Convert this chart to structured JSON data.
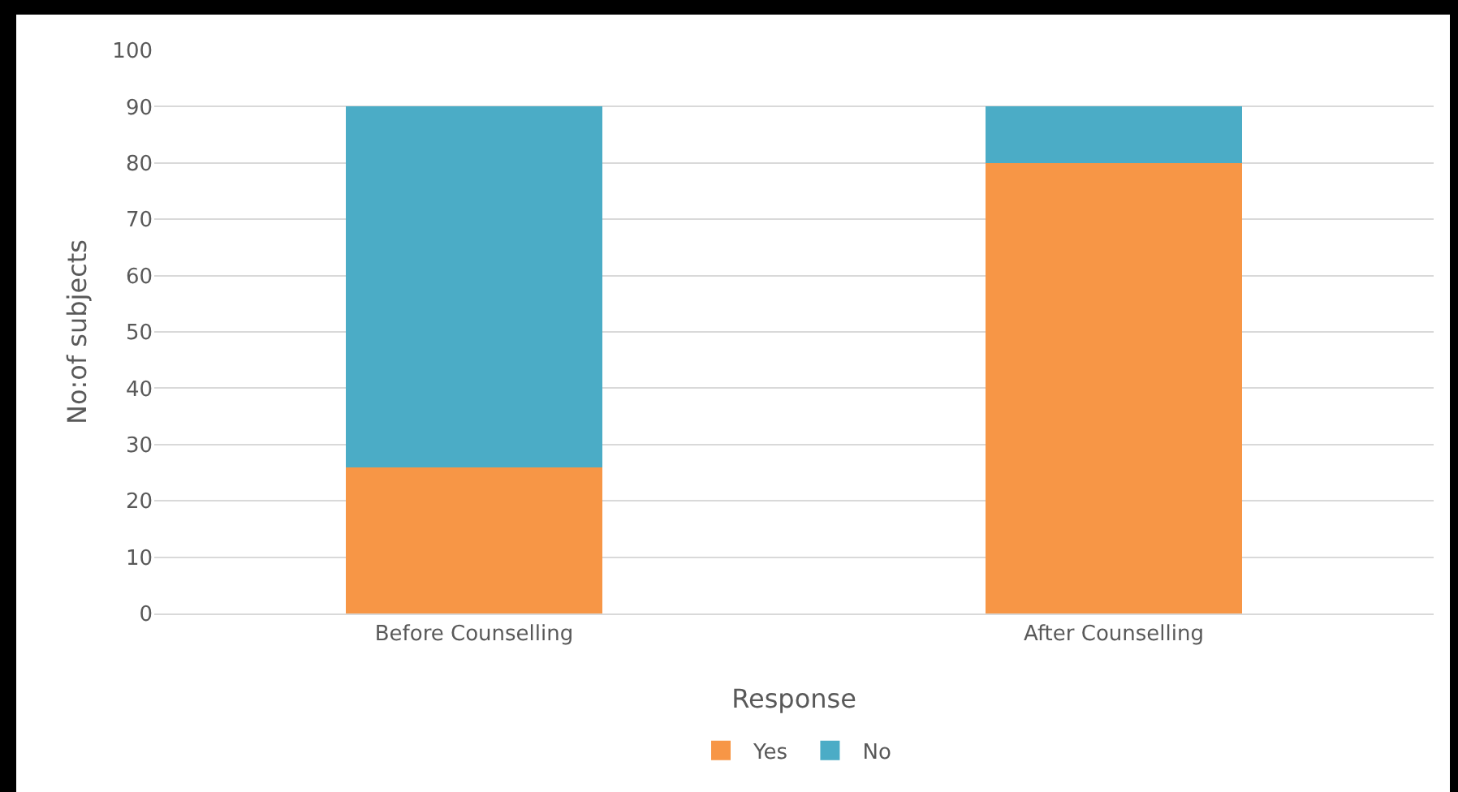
{
  "chart_data": {
    "type": "bar",
    "stacked": true,
    "xlabel": "Response",
    "ylabel": "No:of subjects",
    "categories": [
      "Before Counselling",
      "After Counselling"
    ],
    "series": [
      {
        "name": "Yes",
        "color": "#f79646",
        "values": [
          26,
          80
        ]
      },
      {
        "name": "No",
        "color": "#4bacc6",
        "values": [
          64,
          10
        ]
      }
    ],
    "ylim": [
      0,
      100
    ],
    "yticks": [
      0,
      10,
      20,
      30,
      40,
      50,
      60,
      70,
      80,
      90,
      100
    ],
    "grid": "y",
    "legend": "bottom"
  }
}
